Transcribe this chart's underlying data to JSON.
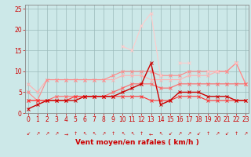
{
  "x": [
    0,
    1,
    2,
    3,
    4,
    5,
    6,
    7,
    8,
    9,
    10,
    11,
    12,
    13,
    14,
    15,
    16,
    17,
    18,
    19,
    20,
    21,
    22,
    23
  ],
  "series": [
    {
      "y": [
        7,
        5,
        8,
        8,
        8,
        8,
        8,
        8,
        8,
        8,
        9,
        9,
        9,
        8,
        8,
        8,
        8,
        9,
        9,
        9,
        10,
        10,
        12,
        7
      ],
      "color": "#ffb0b0",
      "lw": 0.8,
      "marker": "x",
      "ms": 2.5
    },
    {
      "y": [
        5,
        3,
        8,
        8,
        8,
        8,
        8,
        8,
        8,
        9,
        10,
        10,
        10,
        10,
        9,
        9,
        9,
        10,
        10,
        10,
        10,
        10,
        12,
        7
      ],
      "color": "#ff8888",
      "lw": 0.8,
      "marker": "x",
      "ms": 2.5
    },
    {
      "y": [
        3,
        3,
        3,
        4,
        4,
        4,
        4,
        4,
        4,
        5,
        6,
        7,
        7,
        7,
        6,
        6,
        7,
        7,
        7,
        7,
        7,
        7,
        7,
        7
      ],
      "color": "#ff6666",
      "lw": 0.8,
      "marker": "x",
      "ms": 2.5
    },
    {
      "y": [
        3,
        3,
        3,
        3,
        3,
        4,
        4,
        4,
        4,
        4,
        4,
        4,
        4,
        3,
        3,
        3,
        4,
        4,
        4,
        3,
        3,
        3,
        3,
        3
      ],
      "color": "#ff3333",
      "lw": 0.8,
      "marker": "x",
      "ms": 2.5
    },
    {
      "y": [
        1,
        2,
        3,
        3,
        3,
        3,
        4,
        4,
        4,
        4,
        5,
        6,
        7,
        12,
        2,
        3,
        5,
        5,
        5,
        4,
        4,
        4,
        3,
        3
      ],
      "color": "#cc0000",
      "lw": 1.0,
      "marker": "x",
      "ms": 2.5
    },
    {
      "y": [
        null,
        null,
        null,
        null,
        null,
        null,
        null,
        null,
        null,
        null,
        16,
        15,
        21,
        24,
        9,
        null,
        12,
        12,
        null,
        10,
        10,
        null,
        12,
        null
      ],
      "color": "#ffcccc",
      "lw": 0.8,
      "marker": "x",
      "ms": 2.5
    }
  ],
  "bg_color": "#cce8e8",
  "grid_color": "#9bbaba",
  "xlabel": "Vent moyen/en rafales ( km/h )",
  "xlabel_color": "#cc0000",
  "xlabel_fontsize": 6.5,
  "ylabel_ticks": [
    0,
    5,
    10,
    15,
    20,
    25
  ],
  "xlim": [
    -0.3,
    23.3
  ],
  "ylim": [
    0,
    26
  ],
  "tick_color": "#cc0000",
  "tick_fontsize": 5.5,
  "spine_color": "#888888",
  "wind_arrows": [
    "↙",
    "↗",
    "↗",
    "↗",
    "→",
    "↑",
    "↖",
    "↖",
    "↗",
    "↑",
    "↖",
    "↖",
    "↑",
    "←",
    "↖",
    "↙",
    "↗",
    "↗",
    "↙",
    "↑",
    "↗",
    "↙",
    "↑",
    "↗"
  ]
}
